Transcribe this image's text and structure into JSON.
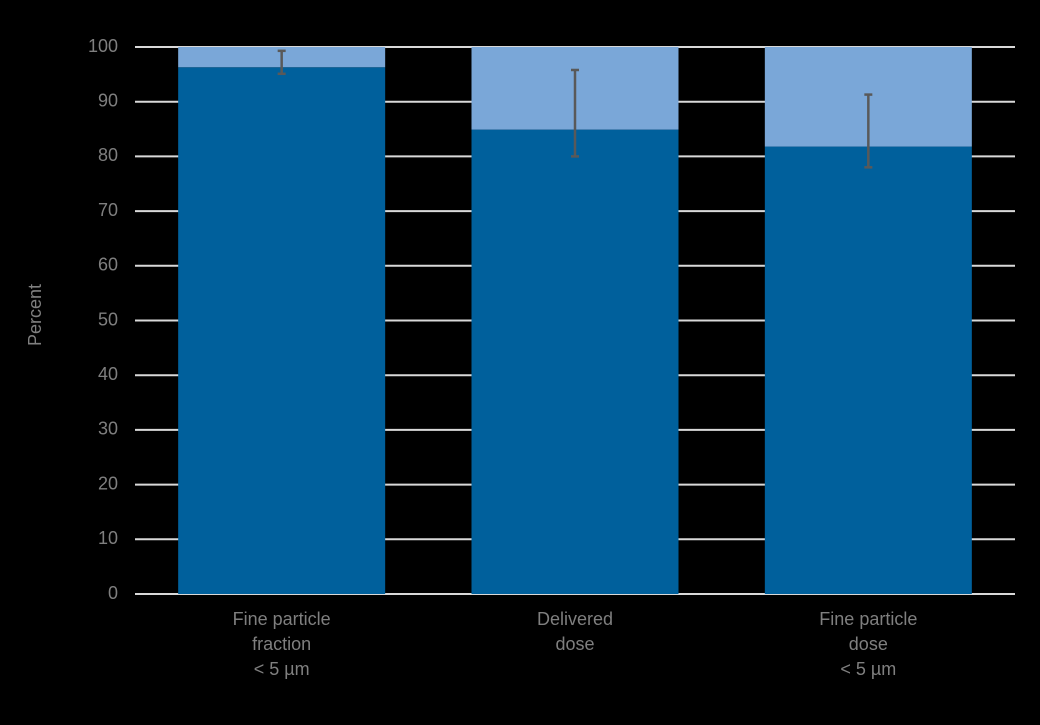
{
  "chart_data": {
    "type": "stacked-bar",
    "y_label": "Percent",
    "categories": [
      [
        "Fine particle",
        "fraction",
        "< 5 µm"
      ],
      [
        "Delivered",
        "dose"
      ],
      [
        "Fine particle",
        "dose",
        "< 5 µm"
      ]
    ],
    "series": [
      {
        "color": "#00609c",
        "values": [
          96.3,
          84.9,
          81.8
        ],
        "error_minus": [
          1.2,
          4.9,
          3.8
        ],
        "error_plus": [
          3.0,
          10.9,
          9.5
        ],
        "error_color": "#595959"
      },
      {
        "color": "#7aa7d8",
        "values": [
          3.7,
          15.1,
          18.2
        ]
      }
    ],
    "ylim": [
      0,
      100
    ],
    "yticks": [
      0,
      10,
      20,
      30,
      40,
      50,
      60,
      70,
      80,
      90,
      100
    ],
    "grid": true
  }
}
